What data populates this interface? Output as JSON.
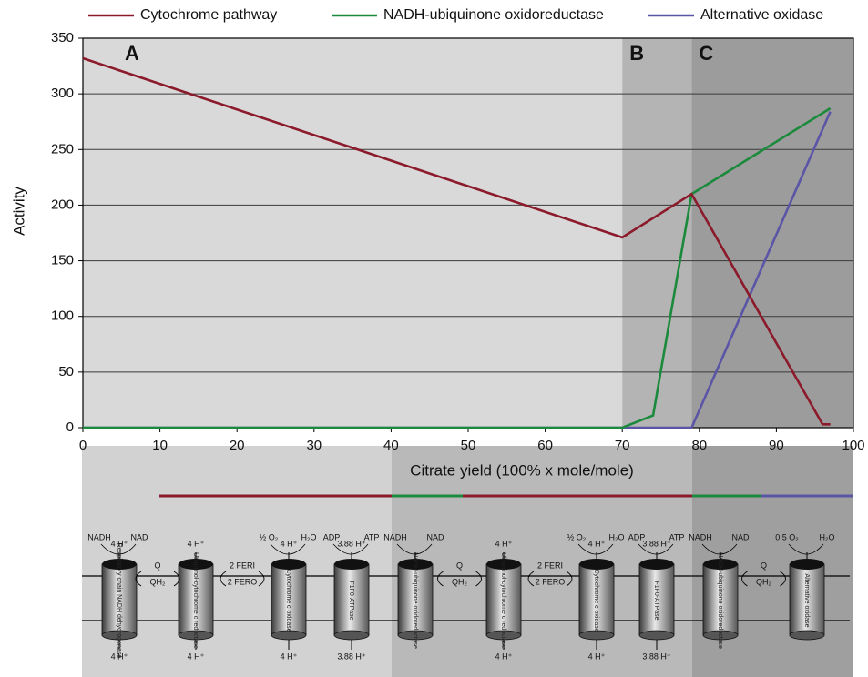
{
  "chart_data": {
    "type": "line",
    "xlabel": "Citrate yield (100% x mole/mole)",
    "ylabel": "Activity",
    "xlim": [
      0,
      100
    ],
    "xticks": [
      0,
      10,
      20,
      30,
      40,
      50,
      60,
      70,
      80,
      90,
      100
    ],
    "ylim": [
      0,
      350
    ],
    "yticks": [
      0,
      50,
      100,
      150,
      200,
      250,
      300,
      350
    ],
    "grid": true,
    "legend": "top",
    "regions": [
      {
        "label": "A",
        "start": 0,
        "end": 70,
        "color": "#d9d9d9"
      },
      {
        "label": "B",
        "start": 70,
        "end": 79,
        "color": "#b4b4b4"
      },
      {
        "label": "C",
        "start": 79,
        "end": 100,
        "color": "#9c9c9c"
      }
    ],
    "series": [
      {
        "name": "Cytochrome pathway",
        "color": "#8b1a2b",
        "x": [
          0,
          70,
          79,
          96,
          97
        ],
        "values": [
          332,
          171,
          210,
          3,
          3
        ]
      },
      {
        "name": "NADH-ubiquinone oxidoreductase",
        "color": "#1b8a3c",
        "x": [
          0,
          70,
          74,
          79,
          97
        ],
        "values": [
          0,
          0,
          11,
          210,
          287
        ]
      },
      {
        "name": "Alternative oxidase",
        "color": "#5b55a6",
        "x": [
          0,
          79,
          97
        ],
        "values": [
          0,
          0,
          284
        ]
      }
    ]
  },
  "diagram": {
    "proteins": [
      {
        "name": "Respiratory chain NADH dehydrogenase",
        "left": "NADH",
        "center": "4 H⁺",
        "right": "NAD",
        "bottom": "4 H⁺"
      },
      {
        "name": "Ubiquinol-cytochrome c reductase",
        "center": "4 H⁺",
        "bottom": "4 H⁺"
      },
      {
        "name": "Cytochrome c oxidase",
        "left": "½ O₂",
        "center": "4 H⁺",
        "right": "H₂O",
        "bottom": "4 H⁺"
      },
      {
        "name": "F1F0-ATPase",
        "left": "ADP",
        "center": "3.88 H⁺",
        "right": "ATP",
        "bottom": "3.88 H⁺"
      },
      {
        "name": "NADH-ubiquinone oxidoreductase",
        "left": "NADH",
        "right": "NAD"
      },
      {
        "name": "Ubiquinol-cytochrome c reductase",
        "center": "4 H⁺",
        "bottom": "4 H⁺"
      },
      {
        "name": "Cytochrome c oxidase",
        "left": "½ O₂",
        "center": "4 H⁺",
        "right": "H₂O",
        "bottom": "4 H⁺"
      },
      {
        "name": "F1F0-ATPase",
        "left": "ADP",
        "center": "3.88 H⁺",
        "right": "ATP",
        "bottom": "3.88 H⁺"
      },
      {
        "name": "NADH-ubiquinone oxidoreductase",
        "left": "NADH",
        "right": "NAD"
      },
      {
        "name": "Alternative oxidase",
        "left": "0.5 O₂",
        "right": "H₂O"
      }
    ],
    "carriers": [
      {
        "top": "Q",
        "bottom": "QH₂"
      },
      {
        "top": "2 FERI",
        "bottom": "2 FERO"
      },
      {
        "top": "Q",
        "bottom": "QH₂"
      },
      {
        "top": "2 FERI",
        "bottom": "2 FERO"
      },
      {
        "top": "Q",
        "bottom": "QH₂"
      }
    ]
  }
}
